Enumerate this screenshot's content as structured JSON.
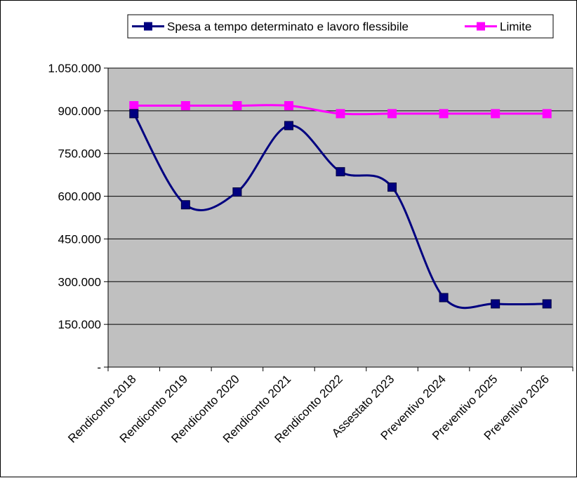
{
  "chart_data": {
    "type": "line",
    "categories": [
      "Rendiconto 2018",
      "Rendiconto 2019",
      "Rendiconto 2020",
      "Rendiconto 2021",
      "Rendiconto 2022",
      "Assestato 2023",
      "Preventivo 2024",
      "Preventivo 2025",
      "Preventivo 2026"
    ],
    "series": [
      {
        "name": "Spesa a tempo determinato e lavoro flessibile",
        "color": "#000080",
        "values": [
          890000,
          570000,
          615000,
          848000,
          686000,
          632000,
          244000,
          222000,
          222000
        ]
      },
      {
        "name": "Limite",
        "color": "#ff00ff",
        "values": [
          918000,
          918000,
          918000,
          918000,
          890000,
          890000,
          890000,
          890000,
          890000
        ]
      }
    ],
    "y_tick_labels": [
      "-",
      "150.000",
      "300.000",
      "450.000",
      "600.000",
      "750.000",
      "900.000",
      "1.050.000"
    ],
    "y_tick_values": [
      0,
      150000,
      300000,
      450000,
      600000,
      750000,
      900000,
      1050000
    ],
    "ylim": [
      0,
      1050000
    ],
    "grid": true,
    "plot_background": "#c0c0c0",
    "legend_position": "top",
    "smooth": true
  }
}
